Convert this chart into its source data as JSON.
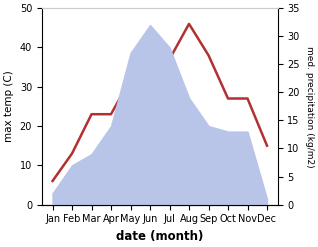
{
  "months": [
    "Jan",
    "Feb",
    "Mar",
    "Apr",
    "May",
    "Jun",
    "Jul",
    "Aug",
    "Sep",
    "Oct",
    "Nov",
    "Dec"
  ],
  "temperature": [
    6,
    13,
    23,
    23,
    32,
    37,
    37,
    46,
    38,
    27,
    27,
    15
  ],
  "precipitation": [
    2,
    7,
    9,
    14,
    27,
    32,
    28,
    19,
    14,
    13,
    13,
    1
  ],
  "temp_ylim": [
    0,
    50
  ],
  "precip_ylim": [
    0,
    35
  ],
  "temp_color": "#b33030",
  "precip_fill_color": "#b8c4e8",
  "xlabel": "date (month)",
  "ylabel_left": "max temp (C)",
  "ylabel_right": "med. precipitation (kg/m2)",
  "temp_yticks": [
    0,
    10,
    20,
    30,
    40,
    50
  ],
  "precip_yticks": [
    0,
    5,
    10,
    15,
    20,
    25,
    30,
    35
  ],
  "figsize": [
    3.18,
    2.47
  ],
  "dpi": 100
}
